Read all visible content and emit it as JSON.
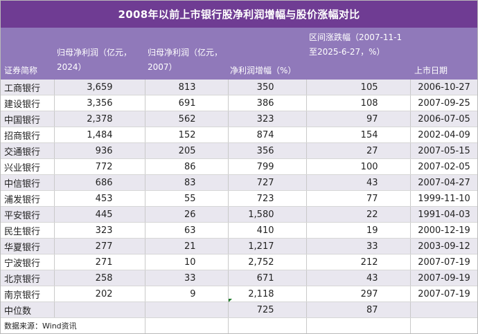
{
  "title": "2008年以前上市银行股净利润增幅与股价涨幅对比",
  "headers": {
    "name": "证券简称",
    "profit2024": "归母净利润（亿元，2024）",
    "profit2007": "归母净利润（亿元，2007）",
    "growth": "净利润增幅（%）",
    "price_change": "区间涨跌幅（2007-11-1至2025-6-27，%）",
    "listing_date": "上市日期"
  },
  "rows": [
    {
      "name": "工商银行",
      "profit2024": "3,659",
      "profit2007": "813",
      "growth": "350",
      "price_change": "105",
      "listing_date": "2006-10-27"
    },
    {
      "name": "建设银行",
      "profit2024": "3,356",
      "profit2007": "691",
      "growth": "386",
      "price_change": "108",
      "listing_date": "2007-09-25"
    },
    {
      "name": "中国银行",
      "profit2024": "2,378",
      "profit2007": "562",
      "growth": "323",
      "price_change": "97",
      "listing_date": "2006-07-05"
    },
    {
      "name": "招商银行",
      "profit2024": "1,484",
      "profit2007": "152",
      "growth": "874",
      "price_change": "154",
      "listing_date": "2002-04-09"
    },
    {
      "name": "交通银行",
      "profit2024": "936",
      "profit2007": "205",
      "growth": "356",
      "price_change": "27",
      "listing_date": "2007-05-15"
    },
    {
      "name": "兴业银行",
      "profit2024": "772",
      "profit2007": "86",
      "growth": "799",
      "price_change": "100",
      "listing_date": "2007-02-05"
    },
    {
      "name": "中信银行",
      "profit2024": "686",
      "profit2007": "83",
      "growth": "727",
      "price_change": "43",
      "listing_date": "2007-04-27"
    },
    {
      "name": "浦发银行",
      "profit2024": "453",
      "profit2007": "55",
      "growth": "723",
      "price_change": "77",
      "listing_date": "1999-11-10"
    },
    {
      "name": "平安银行",
      "profit2024": "445",
      "profit2007": "26",
      "growth": "1,580",
      "price_change": "22",
      "listing_date": "1991-04-03"
    },
    {
      "name": "民生银行",
      "profit2024": "323",
      "profit2007": "63",
      "growth": "410",
      "price_change": "19",
      "listing_date": "2000-12-19"
    },
    {
      "name": "华夏银行",
      "profit2024": "277",
      "profit2007": "21",
      "growth": "1,217",
      "price_change": "33",
      "listing_date": "2003-09-12"
    },
    {
      "name": "宁波银行",
      "profit2024": "271",
      "profit2007": "10",
      "growth": "2,752",
      "price_change": "212",
      "listing_date": "2007-07-19"
    },
    {
      "name": "北京银行",
      "profit2024": "258",
      "profit2007": "33",
      "growth": "671",
      "price_change": "43",
      "listing_date": "2007-09-19"
    },
    {
      "name": "南京银行",
      "profit2024": "202",
      "profit2007": "9",
      "growth": "2,118",
      "price_change": "297",
      "listing_date": "2007-07-19"
    }
  ],
  "median": {
    "label": "中位数",
    "growth": "725",
    "price_change": "87"
  },
  "source": "数据来源：Wind资讯"
}
